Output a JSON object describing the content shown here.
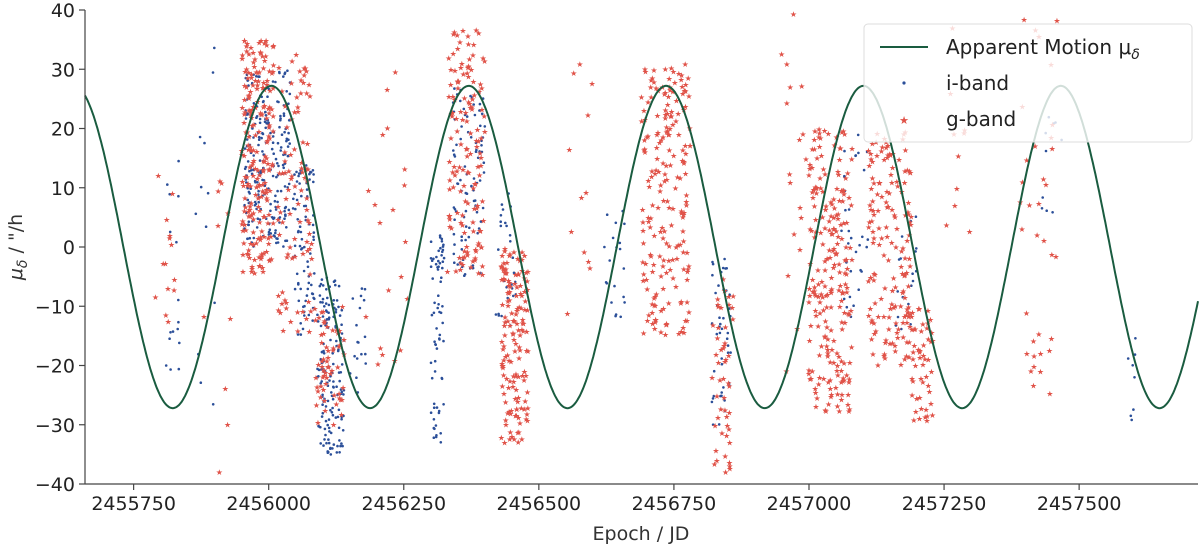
{
  "chart_data": {
    "type": "scatter",
    "title": "",
    "xlabel": "Epoch / JD",
    "ylabel_main": "μ",
    "ylabel_sub": "δ",
    "ylabel_unit": " / \"/h",
    "xlim": [
      2455660,
      2457720
    ],
    "ylim": [
      -40,
      40
    ],
    "x_ticks": [
      2455750,
      2456000,
      2456250,
      2456500,
      2456750,
      2457000,
      2457250,
      2457500
    ],
    "x_tick_labels": [
      "2455750",
      "2456000",
      "2456250",
      "2456500",
      "2456750",
      "2457000",
      "2457250",
      "2457500"
    ],
    "y_ticks": [
      -40,
      -30,
      -20,
      -10,
      0,
      10,
      20,
      30,
      40
    ],
    "y_tick_labels": [
      "−40",
      "−30",
      "−20",
      "−10",
      "0",
      "10",
      "20",
      "30",
      "40"
    ],
    "grid": false,
    "legend_position": "top-right",
    "legend": [
      {
        "label_main": "Apparent Motion μ",
        "label_sub": "δ",
        "color": "#1a5c40",
        "marker": "line"
      },
      {
        "label_main": "i-band",
        "label_sub": "",
        "color": "#2b4f99",
        "marker": "dot"
      },
      {
        "label_main": "g-band",
        "label_sub": "",
        "color": "#e05248",
        "marker": "star"
      }
    ],
    "model": {
      "name": "Apparent Motion μδ",
      "amplitude": 27.2,
      "period": 365.25,
      "peak_epoch": 2456005,
      "x_range": [
        2455660,
        2457720
      ],
      "color": "#1a5c40"
    },
    "series": [
      {
        "name": "i-band",
        "color": "#2b4f99",
        "clusters": [
          {
            "x": [
              2455810,
              2455835
            ],
            "y": [
              -22,
              17
            ],
            "n": 16
          },
          {
            "x": [
              2455860,
              2455900
            ],
            "y": [
              -30,
              37
            ],
            "n": 12
          },
          {
            "x": [
              2455955,
              2456040
            ],
            "y": [
              0,
              30
            ],
            "n": 230
          },
          {
            "x": [
              2456045,
              2456085
            ],
            "y": [
              -15,
              15
            ],
            "n": 80
          },
          {
            "x": [
              2456090,
              2456140
            ],
            "y": [
              -35,
              -5
            ],
            "n": 160
          },
          {
            "x": [
              2456150,
              2456180
            ],
            "y": [
              -25,
              -7
            ],
            "n": 18
          },
          {
            "x": [
              2456300,
              2456325
            ],
            "y": [
              -33,
              2
            ],
            "n": 70
          },
          {
            "x": [
              2456340,
              2456400
            ],
            "y": [
              -5,
              27
            ],
            "n": 90
          },
          {
            "x": [
              2456420,
              2456460
            ],
            "y": [
              -15,
              10
            ],
            "n": 30
          },
          {
            "x": [
              2456620,
              2456660
            ],
            "y": [
              -12,
              7
            ],
            "n": 20
          },
          {
            "x": [
              2456820,
              2456855
            ],
            "y": [
              -30,
              -2
            ],
            "n": 45
          },
          {
            "x": [
              2457060,
              2457110
            ],
            "y": [
              -15,
              20
            ],
            "n": 30
          },
          {
            "x": [
              2457160,
              2457200
            ],
            "y": [
              -15,
              8
            ],
            "n": 18
          },
          {
            "x": [
              2457430,
              2457470
            ],
            "y": [
              5,
              22
            ],
            "n": 10
          },
          {
            "x": [
              2457590,
              2457605
            ],
            "y": [
              -34,
              -7
            ],
            "n": 8
          }
        ]
      },
      {
        "name": "g-band",
        "color": "#e05248",
        "clusters": [
          {
            "x": [
              2455790,
              2455840
            ],
            "y": [
              -20,
              17
            ],
            "n": 14
          },
          {
            "x": [
              2455880,
              2455930
            ],
            "y": [
              -40,
              22
            ],
            "n": 10
          },
          {
            "x": [
              2455950,
              2456010
            ],
            "y": [
              -5,
              35
            ],
            "n": 210
          },
          {
            "x": [
              2456015,
              2456080
            ],
            "y": [
              -15,
              33
            ],
            "n": 90
          },
          {
            "x": [
              2456085,
              2456140
            ],
            "y": [
              -30,
              -10
            ],
            "n": 60
          },
          {
            "x": [
              2456180,
              2456260
            ],
            "y": [
              -25,
              30
            ],
            "n": 20
          },
          {
            "x": [
              2456330,
              2456400
            ],
            "y": [
              -5,
              37
            ],
            "n": 140
          },
          {
            "x": [
              2456430,
              2456480
            ],
            "y": [
              -33,
              0
            ],
            "n": 150
          },
          {
            "x": [
              2456540,
              2456600
            ],
            "y": [
              -17,
              32
            ],
            "n": 12
          },
          {
            "x": [
              2456690,
              2456780
            ],
            "y": [
              -15,
              31
            ],
            "n": 200
          },
          {
            "x": [
              2456820,
              2456860
            ],
            "y": [
              -38,
              -5
            ],
            "n": 50
          },
          {
            "x": [
              2456940,
              2457000
            ],
            "y": [
              -25,
              40
            ],
            "n": 20
          },
          {
            "x": [
              2457000,
              2457080
            ],
            "y": [
              -28,
              20
            ],
            "n": 220
          },
          {
            "x": [
              2457110,
              2457190
            ],
            "y": [
              -20,
              20
            ],
            "n": 160
          },
          {
            "x": [
              2457190,
              2457230
            ],
            "y": [
              -30,
              -10
            ],
            "n": 50
          },
          {
            "x": [
              2457250,
              2457300
            ],
            "y": [
              -5,
              38
            ],
            "n": 10
          },
          {
            "x": [
              2457390,
              2457460
            ],
            "y": [
              -26,
              39
            ],
            "n": 35
          }
        ]
      }
    ]
  }
}
